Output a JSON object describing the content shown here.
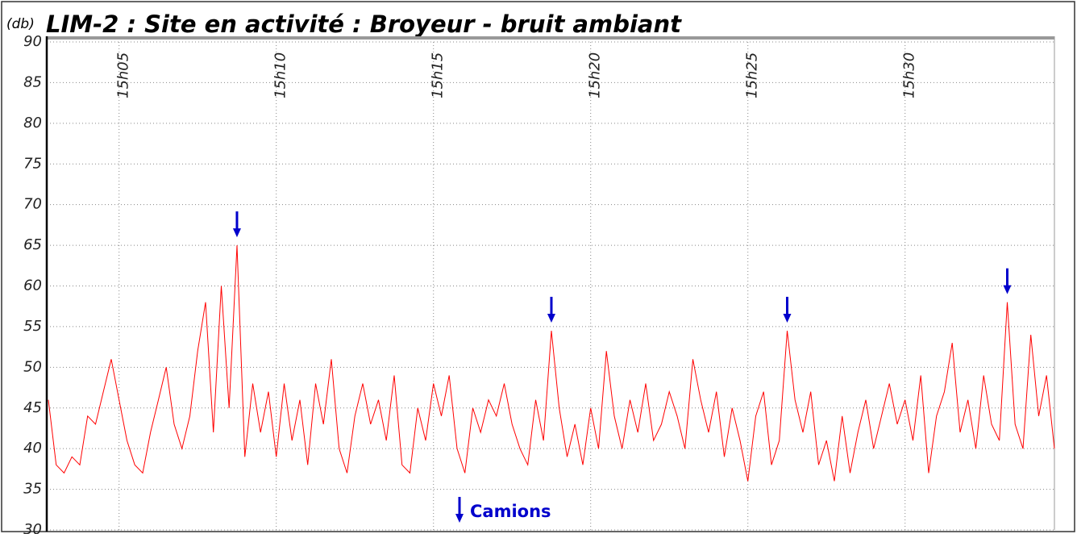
{
  "chart_data": {
    "type": "line",
    "title": "LIM-2 : Site en activité : Broyeur - bruit ambiant",
    "y_label": "(db)",
    "x": [
      2.75,
      3,
      3.25,
      3.5,
      3.75,
      4,
      4.25,
      4.5,
      4.75,
      5,
      5.25,
      5.5,
      5.75,
      6,
      6.25,
      6.5,
      6.75,
      7,
      7.25,
      7.5,
      7.75,
      8,
      8.25,
      8.5,
      8.75,
      9,
      9.25,
      9.5,
      9.75,
      10,
      10.25,
      10.5,
      10.75,
      11,
      11.25,
      11.5,
      11.75,
      12,
      12.25,
      12.5,
      12.75,
      13,
      13.25,
      13.5,
      13.75,
      14,
      14.25,
      14.5,
      14.75,
      15,
      15.25,
      15.5,
      15.75,
      16,
      16.25,
      16.5,
      16.75,
      17,
      17.25,
      17.5,
      17.75,
      18,
      18.25,
      18.5,
      18.75,
      19,
      19.25,
      19.5,
      19.75,
      20,
      20.25,
      20.5,
      20.75,
      21,
      21.25,
      21.5,
      21.75,
      22,
      22.25,
      22.5,
      22.75,
      23,
      23.25,
      23.5,
      23.75,
      24,
      24.25,
      24.5,
      24.75,
      25,
      25.25,
      25.5,
      25.75,
      26,
      26.25,
      26.5,
      26.75,
      27,
      27.25,
      27.5,
      27.75,
      28,
      28.25,
      28.5,
      28.75,
      29,
      29.25,
      29.5,
      29.75,
      30,
      30.25,
      30.5,
      30.75,
      31,
      31.25,
      31.5,
      31.75,
      32,
      32.25,
      32.5,
      32.75,
      33,
      33.25,
      33.5,
      33.75,
      34,
      34.25,
      34.5,
      34.75
    ],
    "series": [
      {
        "color": "#ff0000",
        "values": [
          46,
          38,
          37,
          39,
          38,
          44,
          43,
          47,
          51,
          46,
          41,
          38,
          37,
          42,
          46,
          50,
          43,
          40,
          44,
          52,
          58,
          42,
          60,
          45,
          65,
          39,
          48,
          42,
          47,
          39,
          48,
          41,
          46,
          38,
          48,
          43,
          51,
          40,
          37,
          44,
          48,
          43,
          46,
          41,
          49,
          38,
          37,
          45,
          41,
          48,
          44,
          49,
          40,
          37,
          45,
          42,
          46,
          44,
          48,
          43,
          40,
          38,
          46,
          41,
          54.5,
          45,
          39,
          43,
          38,
          45,
          40,
          52,
          44,
          40,
          46,
          42,
          48,
          41,
          43,
          47,
          44,
          40,
          51,
          46,
          42,
          47,
          39,
          45,
          41,
          36,
          44,
          47,
          38,
          41,
          54.5,
          46,
          42,
          47,
          38,
          41,
          36,
          44,
          37,
          42,
          46,
          40,
          44,
          48,
          43,
          46,
          41,
          49,
          37,
          44,
          47,
          53,
          42,
          46,
          40,
          49,
          43,
          41,
          58,
          43,
          40,
          54,
          44,
          49,
          40
        ]
      }
    ],
    "annotations": {
      "label": "Camions",
      "color": "#0000cc",
      "x": [
        8.75,
        18.75,
        26.25,
        33.25
      ]
    },
    "xlim": [
      2.7,
      34.75
    ],
    "xticks": [
      {
        "value": 5,
        "label": "15h05"
      },
      {
        "value": 10,
        "label": "15h10"
      },
      {
        "value": 15,
        "label": "15h15"
      },
      {
        "value": 20,
        "label": "15h20"
      },
      {
        "value": 25,
        "label": "15h25"
      },
      {
        "value": 30,
        "label": "15h30"
      }
    ],
    "ylim": [
      30,
      90
    ],
    "yticks": [
      30,
      35,
      40,
      45,
      50,
      55,
      60,
      65,
      70,
      75,
      80,
      85,
      90
    ],
    "grid": true
  }
}
